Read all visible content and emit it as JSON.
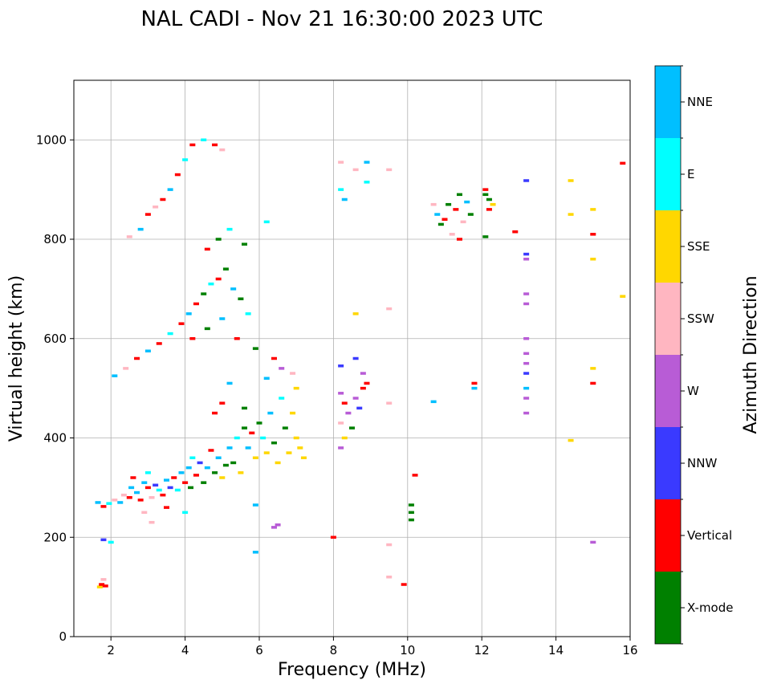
{
  "chart_data": {
    "type": "scatter",
    "subtype": "ionogram",
    "title": "NAL CADI - Nov 21 16:30:00 2023 UTC",
    "xlabel": "Frequency (MHz)",
    "ylabel": "Virtual height (km)",
    "xlim": [
      1,
      16
    ],
    "ylim": [
      0,
      1120
    ],
    "xticks": [
      "2",
      "4",
      "6",
      "8",
      "10",
      "12",
      "14",
      "16"
    ],
    "yticks": [
      "0",
      "200",
      "400",
      "600",
      "800",
      "1000"
    ],
    "grid": true,
    "colorbar": {
      "label": "Azimuth Direction",
      "categories": [
        {
          "name": "X-mode",
          "color": "#008000"
        },
        {
          "name": "Vertical",
          "color": "#ff0000"
        },
        {
          "name": "NNW",
          "color": "#3a3aff"
        },
        {
          "name": "W",
          "color": "#b85cd6"
        },
        {
          "name": "SSW",
          "color": "#ffb6c1"
        },
        {
          "name": "SSE",
          "color": "#ffd700"
        },
        {
          "name": "E",
          "color": "#00ffff"
        },
        {
          "name": "NNE",
          "color": "#00bfff"
        }
      ]
    },
    "points": [
      [
        1.7,
        100,
        "SSE"
      ],
      [
        1.75,
        105,
        "Vertical"
      ],
      [
        1.8,
        115,
        "SSW"
      ],
      [
        1.85,
        102,
        "Vertical"
      ],
      [
        1.8,
        195,
        "NNW"
      ],
      [
        2.0,
        190,
        "E"
      ],
      [
        1.65,
        270,
        "NNE"
      ],
      [
        1.8,
        262,
        "Vertical"
      ],
      [
        1.95,
        268,
        "E"
      ],
      [
        2.1,
        275,
        "SSW"
      ],
      [
        2.25,
        270,
        "NNE"
      ],
      [
        2.35,
        285,
        "SSW"
      ],
      [
        2.5,
        280,
        "Vertical"
      ],
      [
        2.55,
        300,
        "NNE"
      ],
      [
        2.6,
        320,
        "Vertical"
      ],
      [
        2.7,
        290,
        "NNE"
      ],
      [
        2.8,
        275,
        "Vertical"
      ],
      [
        2.9,
        310,
        "NNE"
      ],
      [
        3.0,
        300,
        "Vertical"
      ],
      [
        3.0,
        330,
        "E"
      ],
      [
        3.1,
        280,
        "SSW"
      ],
      [
        3.2,
        305,
        "NNW"
      ],
      [
        3.3,
        295,
        "E"
      ],
      [
        3.4,
        285,
        "Vertical"
      ],
      [
        3.5,
        315,
        "NNE"
      ],
      [
        3.6,
        300,
        "NNW"
      ],
      [
        3.7,
        320,
        "Vertical"
      ],
      [
        3.8,
        295,
        "E"
      ],
      [
        3.9,
        330,
        "NNE"
      ],
      [
        4.0,
        310,
        "Vertical"
      ],
      [
        4.1,
        340,
        "NNE"
      ],
      [
        4.15,
        300,
        "X-mode"
      ],
      [
        4.2,
        360,
        "E"
      ],
      [
        4.3,
        325,
        "Vertical"
      ],
      [
        4.4,
        350,
        "NNW"
      ],
      [
        4.5,
        310,
        "X-mode"
      ],
      [
        4.6,
        340,
        "NNE"
      ],
      [
        4.7,
        375,
        "Vertical"
      ],
      [
        4.8,
        330,
        "X-mode"
      ],
      [
        4.9,
        360,
        "NNE"
      ],
      [
        5.0,
        320,
        "SSE"
      ],
      [
        5.1,
        345,
        "X-mode"
      ],
      [
        5.2,
        380,
        "NNE"
      ],
      [
        5.3,
        350,
        "X-mode"
      ],
      [
        5.4,
        400,
        "E"
      ],
      [
        5.5,
        330,
        "SSE"
      ],
      [
        5.6,
        420,
        "X-mode"
      ],
      [
        5.7,
        380,
        "NNE"
      ],
      [
        5.8,
        410,
        "Vertical"
      ],
      [
        5.9,
        360,
        "SSE"
      ],
      [
        6.0,
        430,
        "X-mode"
      ],
      [
        6.1,
        400,
        "E"
      ],
      [
        6.2,
        370,
        "SSE"
      ],
      [
        6.3,
        450,
        "NNE"
      ],
      [
        6.4,
        390,
        "X-mode"
      ],
      [
        6.5,
        350,
        "SSE"
      ],
      [
        6.6,
        480,
        "E"
      ],
      [
        6.7,
        420,
        "X-mode"
      ],
      [
        6.8,
        370,
        "SSE"
      ],
      [
        6.9,
        450,
        "SSE"
      ],
      [
        7.0,
        400,
        "SSE"
      ],
      [
        7.1,
        380,
        "SSE"
      ],
      [
        7.2,
        360,
        "SSE"
      ],
      [
        2.9,
        250,
        "SSW"
      ],
      [
        3.1,
        230,
        "SSW"
      ],
      [
        3.5,
        260,
        "Vertical"
      ],
      [
        4.0,
        250,
        "E"
      ],
      [
        5.0,
        470,
        "Vertical"
      ],
      [
        5.2,
        510,
        "NNE"
      ],
      [
        4.8,
        450,
        "Vertical"
      ],
      [
        5.6,
        460,
        "X-mode"
      ],
      [
        6.2,
        520,
        "NNE"
      ],
      [
        6.4,
        560,
        "Vertical"
      ],
      [
        6.6,
        540,
        "W"
      ],
      [
        6.9,
        530,
        "SSW"
      ],
      [
        7.0,
        500,
        "SSE"
      ],
      [
        2.1,
        525,
        "NNE"
      ],
      [
        2.4,
        540,
        "SSW"
      ],
      [
        2.7,
        560,
        "Vertical"
      ],
      [
        3.0,
        575,
        "NNE"
      ],
      [
        3.3,
        590,
        "Vertical"
      ],
      [
        3.6,
        610,
        "E"
      ],
      [
        3.9,
        630,
        "Vertical"
      ],
      [
        4.1,
        650,
        "NNE"
      ],
      [
        4.3,
        670,
        "Vertical"
      ],
      [
        4.5,
        690,
        "X-mode"
      ],
      [
        4.7,
        710,
        "E"
      ],
      [
        4.9,
        720,
        "Vertical"
      ],
      [
        5.1,
        740,
        "X-mode"
      ],
      [
        5.3,
        700,
        "NNE"
      ],
      [
        5.5,
        680,
        "X-mode"
      ],
      [
        5.7,
        650,
        "E"
      ],
      [
        4.2,
        600,
        "Vertical"
      ],
      [
        4.6,
        620,
        "X-mode"
      ],
      [
        5.0,
        640,
        "NNE"
      ],
      [
        5.4,
        600,
        "Vertical"
      ],
      [
        5.9,
        580,
        "X-mode"
      ],
      [
        2.5,
        805,
        "SSW"
      ],
      [
        2.8,
        820,
        "NNE"
      ],
      [
        3.0,
        850,
        "Vertical"
      ],
      [
        3.2,
        865,
        "SSW"
      ],
      [
        3.4,
        880,
        "Vertical"
      ],
      [
        3.6,
        900,
        "NNE"
      ],
      [
        3.8,
        930,
        "Vertical"
      ],
      [
        4.0,
        960,
        "E"
      ],
      [
        4.2,
        990,
        "Vertical"
      ],
      [
        4.5,
        1000,
        "E"
      ],
      [
        4.8,
        990,
        "Vertical"
      ],
      [
        5.0,
        980,
        "SSW"
      ],
      [
        4.6,
        780,
        "Vertical"
      ],
      [
        4.9,
        800,
        "X-mode"
      ],
      [
        5.2,
        820,
        "E"
      ],
      [
        5.6,
        790,
        "X-mode"
      ],
      [
        6.2,
        835,
        "E"
      ],
      [
        6.4,
        220,
        "W"
      ],
      [
        6.5,
        225,
        "W"
      ],
      [
        5.9,
        170,
        "NNE"
      ],
      [
        5.9,
        265,
        "NNE"
      ],
      [
        8.0,
        200,
        "Vertical"
      ],
      [
        8.2,
        380,
        "W"
      ],
      [
        8.3,
        400,
        "SSE"
      ],
      [
        8.2,
        430,
        "SSW"
      ],
      [
        8.4,
        450,
        "W"
      ],
      [
        8.3,
        470,
        "Vertical"
      ],
      [
        8.5,
        420,
        "X-mode"
      ],
      [
        8.2,
        490,
        "W"
      ],
      [
        8.6,
        480,
        "W"
      ],
      [
        8.7,
        460,
        "NNW"
      ],
      [
        8.8,
        500,
        "Vertical"
      ],
      [
        8.2,
        545,
        "NNW"
      ],
      [
        8.6,
        560,
        "NNW"
      ],
      [
        8.8,
        530,
        "W"
      ],
      [
        8.9,
        510,
        "Vertical"
      ],
      [
        8.6,
        650,
        "SSE"
      ],
      [
        8.2,
        900,
        "E"
      ],
      [
        8.3,
        880,
        "NNE"
      ],
      [
        8.6,
        940,
        "SSW"
      ],
      [
        8.9,
        915,
        "E"
      ],
      [
        8.9,
        955,
        "NNE"
      ],
      [
        8.2,
        955,
        "SSW"
      ],
      [
        9.5,
        940,
        "SSW"
      ],
      [
        9.5,
        660,
        "SSW"
      ],
      [
        9.5,
        470,
        "SSW"
      ],
      [
        9.5,
        185,
        "SSW"
      ],
      [
        9.5,
        120,
        "SSW"
      ],
      [
        9.9,
        105,
        "Vertical"
      ],
      [
        10.1,
        235,
        "X-mode"
      ],
      [
        10.1,
        250,
        "X-mode"
      ],
      [
        10.1,
        265,
        "X-mode"
      ],
      [
        10.2,
        325,
        "Vertical"
      ],
      [
        10.7,
        473,
        "NNE"
      ],
      [
        10.7,
        870,
        "SSW"
      ],
      [
        10.8,
        850,
        "NNE"
      ],
      [
        10.9,
        830,
        "X-mode"
      ],
      [
        11.0,
        840,
        "Vertical"
      ],
      [
        11.1,
        870,
        "X-mode"
      ],
      [
        11.2,
        810,
        "SSW"
      ],
      [
        11.3,
        860,
        "Vertical"
      ],
      [
        11.4,
        890,
        "X-mode"
      ],
      [
        11.4,
        800,
        "Vertical"
      ],
      [
        11.5,
        835,
        "SSW"
      ],
      [
        11.6,
        875,
        "NNE"
      ],
      [
        11.7,
        850,
        "X-mode"
      ],
      [
        11.8,
        500,
        "NNE"
      ],
      [
        11.8,
        510,
        "Vertical"
      ],
      [
        12.1,
        890,
        "X-mode"
      ],
      [
        12.2,
        860,
        "Vertical"
      ],
      [
        12.3,
        870,
        "SSE"
      ],
      [
        12.1,
        805,
        "X-mode"
      ],
      [
        12.1,
        900,
        "Vertical"
      ],
      [
        12.2,
        880,
        "X-mode"
      ],
      [
        12.9,
        815,
        "Vertical"
      ],
      [
        13.2,
        918,
        "NNW"
      ],
      [
        13.2,
        770,
        "NNW"
      ],
      [
        13.2,
        760,
        "W"
      ],
      [
        13.2,
        690,
        "W"
      ],
      [
        13.2,
        670,
        "W"
      ],
      [
        13.2,
        600,
        "W"
      ],
      [
        13.2,
        570,
        "W"
      ],
      [
        13.2,
        550,
        "W"
      ],
      [
        13.2,
        530,
        "NNW"
      ],
      [
        13.2,
        500,
        "NNE"
      ],
      [
        13.2,
        480,
        "W"
      ],
      [
        13.2,
        450,
        "W"
      ],
      [
        14.4,
        918,
        "SSE"
      ],
      [
        14.4,
        850,
        "SSE"
      ],
      [
        14.4,
        395,
        "SSE"
      ],
      [
        15.0,
        860,
        "SSE"
      ],
      [
        15.0,
        810,
        "Vertical"
      ],
      [
        15.0,
        760,
        "SSE"
      ],
      [
        15.0,
        540,
        "SSE"
      ],
      [
        15.0,
        510,
        "Vertical"
      ],
      [
        15.0,
        190,
        "W"
      ],
      [
        15.8,
        953,
        "Vertical"
      ],
      [
        15.8,
        685,
        "SSE"
      ]
    ]
  }
}
